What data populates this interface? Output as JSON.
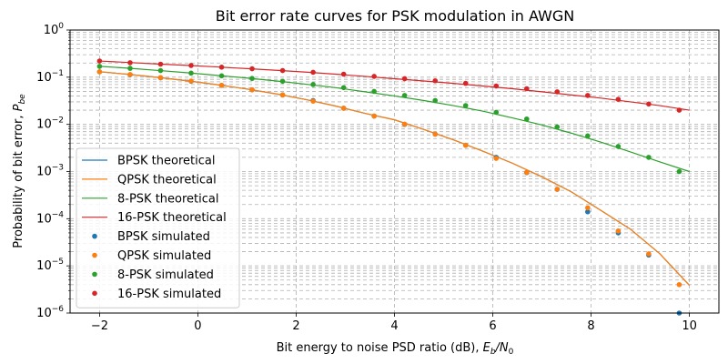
{
  "chart_data": {
    "type": "line",
    "title": "Bit error rate curves for PSK modulation in AWGN",
    "xlabel_main": "Bit energy to noise PSD ratio (dB), ",
    "xlabel_E": "E",
    "xlabel_E_sub": "b",
    "xlabel_N": "/N",
    "xlabel_N_sub": "0",
    "ylabel_main": "Probability of bit error, ",
    "ylabel_P": "P",
    "ylabel_P_sub": "be",
    "xlim": [
      -2.6,
      10.6
    ],
    "ylim": [
      1e-06,
      1
    ],
    "yscale": "log",
    "grid": "both",
    "legend_position": "lower-left",
    "x_ticks": [
      -2,
      0,
      2,
      4,
      6,
      8,
      10
    ],
    "y_tick_labels": [
      {
        "base": "10",
        "exp": "−6",
        "value": 1e-06
      },
      {
        "base": "10",
        "exp": "−5",
        "value": 1e-05
      },
      {
        "base": "10",
        "exp": "−4",
        "value": 0.0001
      },
      {
        "base": "10",
        "exp": "−3",
        "value": 0.001
      },
      {
        "base": "10",
        "exp": "−2",
        "value": 0.01
      },
      {
        "base": "10",
        "exp": "−1",
        "value": 0.1
      },
      {
        "base": "10",
        "exp": "0",
        "value": 1
      }
    ],
    "series": [
      {
        "name": "BPSK theoretical",
        "kind": "line",
        "color": "#1f77b4",
        "x": [
          -2,
          -1.4,
          -0.8,
          -0.2,
          0.4,
          1.0,
          1.6,
          2.2,
          2.8,
          3.4,
          4.0,
          4.6,
          5.2,
          5.8,
          6.4,
          7.0,
          7.6,
          8.2,
          8.8,
          9.4,
          10.0
        ],
        "y": [
          0.1306,
          0.1146,
          0.0988,
          0.0836,
          0.0691,
          0.0562,
          0.0441,
          0.0335,
          0.0245,
          0.0171,
          0.0125,
          0.0078,
          0.0047,
          0.0027,
          0.0015,
          0.000773,
          0.00037,
          0.00015,
          6e-05,
          1.8e-05,
          3.87e-06
        ]
      },
      {
        "name": "QPSK theoretical",
        "kind": "line",
        "color": "#ff7f0e",
        "x": [
          -2,
          -1.4,
          -0.8,
          -0.2,
          0.4,
          1.0,
          1.6,
          2.2,
          2.8,
          3.4,
          4.0,
          4.6,
          5.2,
          5.8,
          6.4,
          7.0,
          7.6,
          8.2,
          8.8,
          9.4,
          10.0
        ],
        "y": [
          0.1306,
          0.1146,
          0.0988,
          0.0836,
          0.0691,
          0.0562,
          0.0441,
          0.0335,
          0.0245,
          0.0171,
          0.0125,
          0.0078,
          0.0047,
          0.0027,
          0.0015,
          0.000773,
          0.00037,
          0.00015,
          6e-05,
          1.8e-05,
          3.87e-06
        ]
      },
      {
        "name": "8-PSK theoretical",
        "kind": "line",
        "color": "#2ca02c",
        "x": [
          -2,
          -1.4,
          -0.8,
          -0.2,
          0.4,
          1.0,
          1.6,
          2.2,
          2.8,
          3.4,
          4.0,
          4.6,
          5.2,
          5.8,
          6.4,
          7.0,
          7.6,
          8.2,
          8.8,
          9.4,
          10.0
        ],
        "y": [
          0.17,
          0.155,
          0.139,
          0.124,
          0.109,
          0.096,
          0.083,
          0.071,
          0.06,
          0.049,
          0.04,
          0.032,
          0.025,
          0.019,
          0.0137,
          0.0097,
          0.0065,
          0.0042,
          0.0026,
          0.0016,
          0.001
        ]
      },
      {
        "name": "16-PSK theoretical",
        "kind": "line",
        "color": "#d62728",
        "x": [
          -2,
          -1.4,
          -0.8,
          -0.2,
          0.4,
          1.0,
          1.6,
          2.2,
          2.8,
          3.4,
          4.0,
          4.6,
          5.2,
          5.8,
          6.4,
          7.0,
          7.6,
          8.2,
          8.8,
          9.4,
          10.0
        ],
        "y": [
          0.22,
          0.205,
          0.19,
          0.178,
          0.165,
          0.152,
          0.14,
          0.128,
          0.116,
          0.104,
          0.093,
          0.083,
          0.074,
          0.065,
          0.057,
          0.049,
          0.042,
          0.036,
          0.03,
          0.025,
          0.02
        ]
      },
      {
        "name": "BPSK simulated",
        "kind": "scatter",
        "color": "#1f77b4",
        "x": [
          -2,
          -1.379,
          -0.759,
          -0.138,
          0.483,
          1.103,
          1.724,
          2.345,
          2.966,
          3.586,
          4.207,
          4.828,
          5.448,
          6.069,
          6.69,
          7.31,
          7.931,
          8.552,
          9.172,
          9.793
        ],
        "y": [
          0.13,
          0.113,
          0.097,
          0.082,
          0.067,
          0.054,
          0.042,
          0.032,
          0.022,
          0.015,
          0.01,
          0.0062,
          0.0036,
          0.002,
          0.00095,
          0.00042,
          0.00014,
          5e-05,
          1.7e-05,
          1e-06
        ]
      },
      {
        "name": "QPSK simulated",
        "kind": "scatter",
        "color": "#ff7f0e",
        "x": [
          -2,
          -1.379,
          -0.759,
          -0.138,
          0.483,
          1.103,
          1.724,
          2.345,
          2.966,
          3.586,
          4.207,
          4.828,
          5.448,
          6.069,
          6.69,
          7.31,
          7.931,
          8.552,
          9.172,
          9.793
        ],
        "y": [
          0.13,
          0.114,
          0.098,
          0.083,
          0.067,
          0.054,
          0.042,
          0.031,
          0.022,
          0.015,
          0.0101,
          0.0062,
          0.0036,
          0.0019,
          0.00096,
          0.00042,
          0.00017,
          5.5e-05,
          1.8e-05,
          4e-06
        ]
      },
      {
        "name": "8-PSK simulated",
        "kind": "scatter",
        "color": "#2ca02c",
        "x": [
          -2,
          -1.379,
          -0.759,
          -0.138,
          0.483,
          1.103,
          1.724,
          2.345,
          2.966,
          3.586,
          4.207,
          4.828,
          5.448,
          6.069,
          6.69,
          7.31,
          7.931,
          8.552,
          9.172,
          9.793
        ],
        "y": [
          0.17,
          0.154,
          0.138,
          0.122,
          0.107,
          0.094,
          0.082,
          0.07,
          0.06,
          0.05,
          0.041,
          0.032,
          0.025,
          0.018,
          0.013,
          0.0088,
          0.0057,
          0.0034,
          0.002,
          0.001
        ]
      },
      {
        "name": "16-PSK simulated",
        "kind": "scatter",
        "color": "#d62728",
        "x": [
          -2,
          -1.379,
          -0.759,
          -0.138,
          0.483,
          1.103,
          1.724,
          2.345,
          2.966,
          3.586,
          4.207,
          4.828,
          5.448,
          6.069,
          6.69,
          7.31,
          7.931,
          8.552,
          9.172,
          9.793
        ],
        "y": [
          0.22,
          0.203,
          0.189,
          0.177,
          0.163,
          0.151,
          0.138,
          0.127,
          0.116,
          0.104,
          0.093,
          0.084,
          0.074,
          0.065,
          0.057,
          0.049,
          0.041,
          0.034,
          0.027,
          0.02
        ]
      }
    ]
  }
}
